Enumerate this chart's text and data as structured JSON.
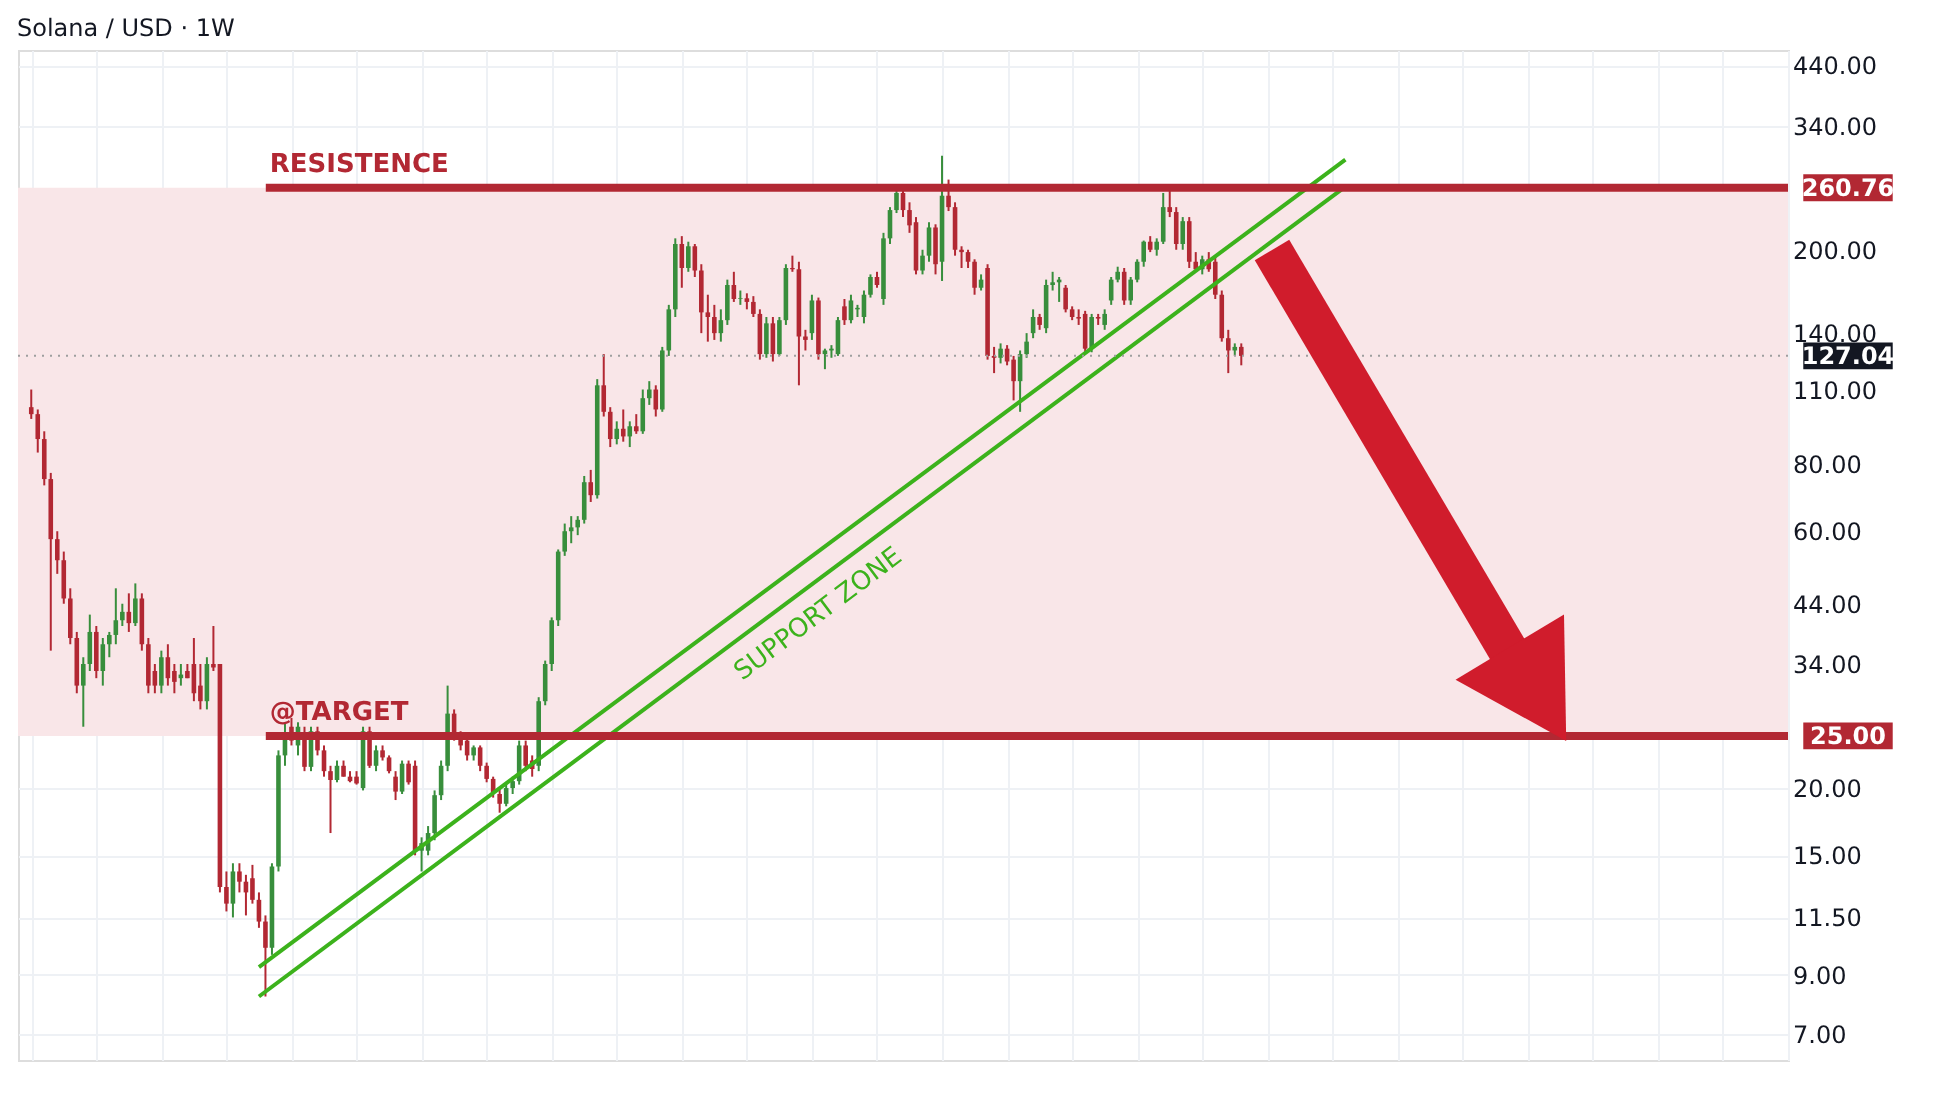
{
  "chart_data": {
    "type": "candlestick",
    "title": "Solana / USD · 1W",
    "categories": [
      null,
      null,
      null,
      null,
      null,
      null,
      null,
      null,
      null,
      null,
      null,
      null,
      null,
      null,
      null,
      null,
      null,
      null,
      null,
      null,
      null,
      null,
      null,
      null,
      null,
      null,
      null,
      null,
      null,
      null,
      null,
      null,
      null,
      null,
      null,
      null,
      null,
      null,
      null,
      null,
      null,
      null,
      null,
      null,
      null,
      null,
      null,
      null,
      null,
      null,
      null,
      null,
      null,
      null,
      null,
      null,
      null,
      null,
      null,
      null,
      null,
      null,
      null,
      null,
      null,
      null,
      null,
      null,
      null,
      null,
      null,
      null,
      null,
      null,
      null,
      null,
      null,
      null,
      null,
      null,
      null,
      null,
      null,
      null,
      null,
      null,
      null,
      null,
      null,
      null,
      null,
      null,
      null,
      null,
      null,
      null,
      null,
      null,
      null,
      null,
      null,
      null,
      null,
      null,
      null,
      null,
      null,
      null,
      null,
      null,
      null,
      null,
      null,
      null,
      null,
      null,
      null,
      null,
      null,
      null,
      null,
      null,
      null,
      null,
      null,
      null,
      null,
      null,
      null,
      null,
      null,
      null,
      null,
      null,
      null,
      null,
      null,
      null,
      null,
      null,
      null,
      null,
      null,
      null,
      null,
      null,
      null,
      null,
      null,
      null,
      null,
      null,
      null,
      null,
      null,
      null,
      null,
      null,
      null,
      null,
      null,
      null,
      null,
      null,
      null,
      null,
      null,
      null,
      null,
      null,
      null,
      null,
      null,
      null,
      null,
      null,
      null,
      null,
      null,
      null,
      null,
      null,
      null,
      null,
      null,
      null,
      null,
      null,
      null,
      null,
      null,
      null,
      null,
      null,
      null,
      null,
      null,
      null,
      null,
      null,
      null,
      null,
      null,
      null,
      null,
      null,
      null,
      null,
      null,
      null,
      null,
      null,
      null,
      null,
      null,
      null,
      null,
      null,
      null,
      null,
      null,
      null,
      null,
      null,
      null,
      null,
      null,
      null,
      null,
      null,
      null,
      null,
      null,
      null,
      null,
      null,
      null,
      null,
      null,
      null,
      null,
      null,
      null,
      null,
      null,
      null,
      null,
      null,
      null,
      null,
      null,
      null,
      null,
      null,
      null,
      null,
      null,
      null,
      null,
      null,
      null,
      null,
      null,
      null,
      null,
      null,
      null,
      null,
      null
    ],
    "ohlc": [
      [
        102,
        110,
        97,
        99
      ],
      [
        99,
        101,
        84,
        89
      ],
      [
        89,
        92,
        73,
        75
      ],
      [
        75,
        77,
        36,
        58
      ],
      [
        58,
        60,
        50,
        53
      ],
      [
        53,
        55,
        44,
        45
      ],
      [
        45,
        47,
        37,
        38
      ],
      [
        38,
        39,
        30,
        31
      ],
      [
        31,
        35,
        26,
        34
      ],
      [
        34,
        42,
        33,
        39
      ],
      [
        39,
        40,
        32,
        33
      ],
      [
        33,
        38,
        31,
        37
      ],
      [
        37,
        39,
        35,
        38.5
      ],
      [
        38.5,
        47,
        37,
        41
      ],
      [
        41,
        44,
        40,
        42.5
      ],
      [
        42.5,
        46,
        39,
        40.5
      ],
      [
        40.5,
        48,
        40,
        45
      ],
      [
        45,
        46,
        36,
        37
      ],
      [
        37,
        38,
        30,
        31
      ],
      [
        33,
        34,
        30,
        31
      ],
      [
        31,
        36,
        30,
        35
      ],
      [
        35,
        37,
        31,
        32
      ],
      [
        33,
        34,
        30,
        31.5
      ],
      [
        32,
        34,
        31,
        32.5
      ],
      [
        33,
        34,
        32,
        32
      ],
      [
        34,
        38,
        29,
        30
      ],
      [
        31,
        34,
        28,
        29
      ],
      [
        29,
        35,
        28,
        34
      ],
      [
        34,
        40,
        33,
        33.5
      ],
      [
        34,
        34,
        12.8,
        13.1
      ],
      [
        13.1,
        14,
        11.8,
        12.2
      ],
      [
        12.2,
        14.5,
        11.5,
        14
      ],
      [
        14,
        14.5,
        12.8,
        13.4
      ],
      [
        13.4,
        13.8,
        11.6,
        12.8
      ],
      [
        13.6,
        14.4,
        12.2,
        12.4
      ],
      [
        12.4,
        12.8,
        11,
        11.3
      ],
      [
        11.3,
        11.6,
        8.2,
        10.1
      ],
      [
        10.1,
        14.5,
        9.8,
        14.3
      ],
      [
        14.3,
        23.5,
        14,
        23
      ],
      [
        23,
        26.5,
        22,
        25
      ],
      [
        26,
        27,
        24,
        24.5
      ],
      [
        24,
        26.5,
        23,
        26
      ],
      [
        25,
        26,
        21.5,
        21.9
      ],
      [
        21.9,
        26,
        21.5,
        25.5
      ],
      [
        25.5,
        26,
        23,
        23.5
      ],
      [
        23.5,
        24,
        21,
        21.5
      ],
      [
        21.5,
        22,
        16.5,
        20.7
      ],
      [
        20.7,
        22.5,
        20.5,
        22
      ],
      [
        22,
        22.5,
        21,
        21
      ],
      [
        21,
        21.5,
        20.5,
        20.6
      ],
      [
        21,
        21.5,
        20.3,
        20.4
      ],
      [
        20,
        26,
        19.8,
        25.5
      ],
      [
        25.5,
        26,
        21.8,
        22
      ],
      [
        22,
        24,
        21.5,
        23.5
      ],
      [
        23.5,
        24,
        22.5,
        22.8
      ],
      [
        22.8,
        23,
        21.3,
        21.5
      ],
      [
        21,
        21.5,
        19,
        19.7
      ],
      [
        19.7,
        22.5,
        19.5,
        22.2
      ],
      [
        22.2,
        22.5,
        20.3,
        20.5
      ],
      [
        22,
        22.5,
        15,
        15.3
      ],
      [
        15.3,
        16.2,
        14,
        15.8
      ],
      [
        15.3,
        17,
        15,
        16.5
      ],
      [
        16.5,
        19.8,
        16,
        19.4
      ],
      [
        19.4,
        22.5,
        19,
        22
      ],
      [
        22,
        31,
        21.5,
        27.5
      ],
      [
        27.5,
        28,
        24.5,
        25
      ],
      [
        25,
        25.5,
        23.5,
        24
      ],
      [
        24.5,
        25,
        22.5,
        23
      ],
      [
        23,
        24,
        22.5,
        23.8
      ],
      [
        23.8,
        24,
        21.5,
        22
      ],
      [
        22,
        22.3,
        20.5,
        20.8
      ],
      [
        20.8,
        21,
        19.2,
        19.6
      ],
      [
        19.5,
        20,
        18,
        18.7
      ],
      [
        18.7,
        20.5,
        18.5,
        20
      ],
      [
        20,
        21,
        19.5,
        20.6
      ],
      [
        20.6,
        24.5,
        20.3,
        24
      ],
      [
        24,
        24.5,
        21.5,
        22
      ],
      [
        22.5,
        23,
        21,
        21.7
      ],
      [
        22,
        29.5,
        21.5,
        29
      ],
      [
        29,
        34.5,
        28.5,
        34
      ],
      [
        34,
        41.5,
        33,
        41
      ],
      [
        41,
        55.5,
        40,
        55
      ],
      [
        55,
        62,
        54,
        60
      ],
      [
        60,
        64,
        57,
        61
      ],
      [
        61,
        64,
        59,
        63
      ],
      [
        63,
        76,
        62,
        74
      ],
      [
        74,
        78,
        68,
        70
      ],
      [
        70,
        115,
        69,
        112
      ],
      [
        112,
        128,
        98,
        100
      ],
      [
        100,
        102,
        86,
        89
      ],
      [
        89,
        96,
        87,
        93
      ],
      [
        93,
        101,
        88,
        90
      ],
      [
        90,
        96,
        86,
        94
      ],
      [
        94,
        99,
        91,
        92
      ],
      [
        92,
        110,
        91,
        106
      ],
      [
        106,
        114,
        103,
        110
      ],
      [
        110,
        112,
        98,
        101
      ],
      [
        101,
        132,
        100,
        130
      ],
      [
        130,
        158,
        127,
        155
      ],
      [
        155,
        210,
        150,
        205
      ],
      [
        205,
        212,
        170,
        185
      ],
      [
        185,
        207,
        182,
        203
      ],
      [
        203,
        205,
        178,
        183
      ],
      [
        183,
        188,
        140,
        153
      ],
      [
        153,
        165,
        135,
        150
      ],
      [
        150,
        158,
        136,
        140
      ],
      [
        140,
        155,
        135,
        148
      ],
      [
        148,
        176,
        145,
        172
      ],
      [
        172,
        182,
        160,
        162
      ],
      [
        162,
        168,
        158,
        162.5
      ],
      [
        162.5,
        166,
        155,
        160
      ],
      [
        160,
        164,
        150,
        152
      ],
      [
        152,
        155,
        125,
        128
      ],
      [
        128,
        150,
        126,
        146
      ],
      [
        146,
        150,
        124,
        128
      ],
      [
        128,
        150,
        127,
        148
      ],
      [
        148,
        188,
        145,
        185
      ],
      [
        185,
        195,
        182,
        184
      ],
      [
        184,
        190,
        112,
        138
      ],
      [
        138,
        142,
        130,
        136
      ],
      [
        140,
        165,
        136,
        161
      ],
      [
        161,
        163,
        125,
        128
      ],
      [
        128,
        131,
        120,
        130
      ],
      [
        130,
        133,
        126,
        131
      ],
      [
        128,
        150,
        127,
        148
      ],
      [
        157,
        162,
        145,
        148
      ],
      [
        148,
        165,
        146,
        161
      ],
      [
        155,
        158,
        150,
        156
      ],
      [
        150,
        168,
        146,
        165
      ],
      [
        165,
        180,
        163,
        178
      ],
      [
        178,
        182,
        170,
        172
      ],
      [
        162,
        215,
        158,
        210
      ],
      [
        210,
        240,
        205,
        237
      ],
      [
        237,
        262,
        234,
        255
      ],
      [
        255,
        262,
        230,
        237
      ],
      [
        237,
        245,
        215,
        222
      ],
      [
        225,
        230,
        180,
        183
      ],
      [
        183,
        200,
        180,
        195
      ],
      [
        195,
        225,
        190,
        220
      ],
      [
        220,
        223,
        180,
        188
      ],
      [
        190,
        299,
        175,
        252
      ],
      [
        252,
        270,
        236,
        240
      ],
      [
        240,
        245,
        195,
        200
      ],
      [
        200,
        203,
        185,
        198
      ],
      [
        198,
        200,
        185,
        190
      ],
      [
        190,
        192,
        165,
        170
      ],
      [
        170,
        180,
        168,
        176
      ],
      [
        185,
        188,
        125,
        127
      ],
      [
        127,
        132,
        118,
        126
      ],
      [
        126,
        134,
        123,
        131
      ],
      [
        131,
        133,
        122,
        124
      ],
      [
        125,
        127,
        105,
        114
      ],
      [
        114,
        130,
        100,
        128
      ],
      [
        128,
        140,
        126,
        135
      ],
      [
        140,
        155,
        137,
        150
      ],
      [
        150,
        152,
        142,
        145
      ],
      [
        143,
        176,
        140,
        172
      ],
      [
        172,
        182,
        168,
        174
      ],
      [
        174,
        178,
        160,
        176
      ],
      [
        170,
        172,
        153,
        155
      ],
      [
        155,
        157,
        148,
        150
      ],
      [
        150,
        155,
        145,
        149
      ],
      [
        152,
        154,
        128,
        131
      ],
      [
        131,
        152,
        129,
        150
      ],
      [
        150,
        152,
        145,
        149
      ],
      [
        145,
        155,
        142,
        152
      ],
      [
        161,
        178,
        158,
        176
      ],
      [
        176,
        186,
        174,
        182
      ],
      [
        182,
        185,
        158,
        161
      ],
      [
        161,
        178,
        158,
        176
      ],
      [
        176,
        192,
        174,
        190
      ],
      [
        190,
        208,
        186,
        207
      ],
      [
        207,
        212,
        198,
        200
      ],
      [
        200,
        210,
        195,
        207
      ],
      [
        207,
        255,
        205,
        240
      ],
      [
        240,
        262,
        230,
        235
      ],
      [
        235,
        240,
        200,
        205
      ],
      [
        205,
        230,
        200,
        226
      ],
      [
        226,
        230,
        185,
        190
      ],
      [
        190,
        198,
        182,
        184
      ],
      [
        184,
        195,
        180,
        192
      ],
      [
        192,
        198,
        182,
        184
      ],
      [
        190,
        195,
        162,
        165
      ],
      [
        165,
        168,
        135,
        137
      ],
      [
        137,
        142,
        118,
        130
      ],
      [
        130,
        134,
        127,
        132
      ],
      [
        132,
        134,
        122,
        127
      ],
      null,
      null,
      null,
      null,
      null,
      null,
      null,
      null,
      null,
      null,
      null,
      null,
      null,
      null,
      null,
      null,
      null,
      null,
      null,
      null,
      null,
      null,
      null,
      null,
      null,
      null,
      null,
      null,
      null,
      null,
      null,
      null,
      null,
      null,
      null,
      null,
      null,
      null,
      null,
      null,
      null,
      null,
      null,
      null,
      null,
      null,
      null,
      null,
      null,
      null,
      null,
      null,
      null,
      null,
      null,
      null,
      null,
      null,
      null,
      null,
      null,
      null,
      null,
      null,
      null,
      null,
      null,
      null,
      null,
      null,
      null,
      null,
      null,
      null,
      null,
      null,
      null,
      null,
      null,
      null,
      null,
      null
    ],
    "colors": [
      "#b22833",
      "#b22833",
      "#b22833",
      "#b22833",
      "#b22833",
      "#b22833",
      "#b22833",
      "#b22833",
      "#388e3c",
      "#388e3c",
      "#b22833",
      "#388e3c",
      "#388e3c",
      "#388e3c",
      "#388e3c",
      "#b22833",
      "#388e3c",
      "#b22833",
      "#b22833",
      "#b22833",
      "#388e3c",
      "#b22833",
      "#b22833",
      "#388e3c",
      "#b22833",
      "#b22833",
      "#b22833",
      "#388e3c",
      "#b22833",
      "#b22833",
      "#b22833",
      "#388e3c",
      "#b22833",
      "#b22833",
      "#b22833",
      "#b22833",
      "#b22833",
      "#388e3c",
      "#388e3c",
      "#388e3c",
      "#b22833",
      "#388e3c",
      "#b22833",
      "#388e3c",
      "#b22833",
      "#b22833",
      "#b22833",
      "#388e3c",
      "#b22833",
      "#b22833",
      "#b22833",
      "#388e3c",
      "#b22833",
      "#388e3c",
      "#b22833",
      "#b22833",
      "#b22833",
      "#388e3c",
      "#b22833",
      "#b22833",
      "#388e3c",
      "#388e3c",
      "#388e3c",
      "#388e3c",
      "#388e3c",
      "#b22833",
      "#b22833",
      "#b22833",
      "#388e3c",
      "#b22833",
      "#b22833",
      "#b22833",
      "#b22833",
      "#388e3c",
      "#388e3c",
      "#388e3c",
      "#b22833",
      "#b22833",
      "#388e3c",
      "#388e3c",
      "#388e3c",
      "#388e3c",
      "#388e3c",
      "#388e3c",
      "#388e3c",
      "#388e3c",
      "#b22833",
      "#388e3c",
      "#b22833",
      "#b22833",
      "#388e3c",
      "#b22833",
      "#388e3c",
      "#b22833",
      "#388e3c",
      "#388e3c",
      "#b22833",
      "#388e3c",
      "#388e3c",
      "#388e3c",
      "#b22833",
      "#388e3c",
      "#b22833",
      "#b22833",
      "#b22833",
      "#b22833",
      "#388e3c",
      "#388e3c",
      "#b22833",
      "#388e3c",
      "#b22833",
      "#b22833",
      "#b22833",
      "#388e3c",
      "#b22833",
      "#388e3c",
      "#388e3c",
      "#b22833",
      "#b22833",
      "#b22833",
      "#388e3c",
      "#b22833",
      "#388e3c",
      "#388e3c",
      "#388e3c",
      "#b22833",
      "#388e3c",
      "#388e3c",
      "#388e3c",
      "#388e3c",
      "#b22833",
      "#388e3c",
      "#388e3c",
      "#388e3c",
      "#b22833",
      "#b22833",
      "#b22833",
      "#388e3c",
      "#388e3c",
      "#b22833",
      "#388e3c",
      "#b22833",
      "#b22833",
      "#b22833",
      "#b22833",
      "#b22833",
      "#388e3c",
      "#b22833",
      "#b22833",
      "#388e3c",
      "#b22833",
      "#b22833",
      "#388e3c",
      "#388e3c",
      "#388e3c",
      "#b22833",
      "#388e3c",
      "#388e3c",
      "#388e3c",
      "#b22833",
      "#b22833",
      "#b22833",
      "#b22833",
      "#388e3c",
      "#b22833",
      "#388e3c",
      "#388e3c",
      "#388e3c",
      "#b22833",
      "#388e3c",
      "#388e3c",
      "#388e3c",
      "#b22833",
      "#388e3c",
      "#388e3c",
      "#b22833",
      "#b22833",
      "#388e3c",
      "#b22833",
      "#b22833",
      "#388e3c",
      "#b22833",
      "#b22833",
      "#b22833",
      "#b22833",
      "#388e3c",
      "#b22833",
      null,
      null,
      null,
      null,
      null,
      null,
      null,
      null,
      null,
      null,
      null,
      null,
      null,
      null,
      null,
      null,
      null,
      null,
      null,
      null,
      null,
      null,
      null,
      null,
      null,
      null,
      null,
      null,
      null,
      null,
      null,
      null,
      null,
      null,
      null,
      null,
      null,
      null,
      null,
      null,
      null,
      null,
      null,
      null,
      null,
      null,
      null,
      null,
      null,
      null,
      null,
      null,
      null,
      null,
      null,
      null,
      null,
      null,
      null,
      null,
      null,
      null,
      null,
      null,
      null,
      null,
      null,
      null,
      null,
      null,
      null,
      null,
      null,
      null,
      null,
      null,
      null,
      null,
      null,
      null,
      null,
      null
    ],
    "series": [
      {
        "type": "line",
        "color": "#3cb21c",
        "values": [
          null,
          null,
          null,
          null,
          null,
          null,
          null,
          null,
          null,
          null,
          null,
          null,
          null,
          null,
          null,
          null,
          null,
          null,
          null,
          null,
          null,
          null,
          null,
          null,
          null,
          null,
          null,
          null,
          null,
          null,
          null,
          null,
          null,
          null,
          null,
          9.3,
          null,
          null,
          null,
          null,
          null,
          null,
          null,
          null,
          null,
          null,
          null,
          null,
          null,
          null,
          null,
          null,
          null,
          null,
          null,
          null,
          null,
          null,
          null,
          null,
          null,
          null,
          null,
          null,
          null,
          null,
          null,
          null,
          null,
          null,
          null,
          null,
          null,
          null,
          null,
          null,
          null,
          null,
          null,
          null,
          null,
          null,
          null,
          null,
          null,
          null,
          null,
          null,
          null,
          null,
          null,
          null,
          null,
          null,
          null,
          null,
          null,
          null,
          null,
          null,
          null,
          null,
          null,
          null,
          null,
          null,
          null,
          null,
          null,
          null,
          null,
          null,
          null,
          null,
          null,
          null,
          null,
          null,
          null,
          null,
          null,
          null,
          null,
          null,
          null,
          null,
          null,
          null,
          null,
          null,
          null,
          null,
          null,
          null,
          null,
          null,
          null,
          null,
          null,
          null,
          null,
          null,
          null,
          null,
          null,
          null,
          null,
          null,
          null,
          null,
          null,
          null,
          null,
          null,
          null,
          null,
          null,
          null,
          null,
          null,
          null,
          null,
          null,
          null,
          null,
          null,
          null,
          null,
          null,
          null,
          null,
          null,
          null,
          null,
          null,
          null,
          null,
          null,
          null,
          null,
          null,
          null,
          null,
          null,
          null,
          null,
          null,
          null,
          null,
          null,
          null,
          null,
          null,
          null,
          null,
          null,
          null,
          null,
          null,
          null,
          null,
          null,
          294,
          null,
          null,
          null,
          null,
          null,
          null,
          null,
          null,
          null,
          null,
          null,
          null,
          null,
          null,
          null,
          null,
          null,
          null,
          null,
          null,
          null,
          null,
          null,
          null,
          null,
          null,
          null,
          null,
          null,
          null,
          null,
          null,
          null,
          null,
          null,
          null,
          null,
          null,
          null,
          null,
          null,
          null,
          null,
          null,
          null,
          null,
          null,
          null,
          null,
          null,
          null,
          null,
          null,
          null,
          null,
          null,
          null,
          null,
          null,
          null,
          null,
          null,
          null,
          null,
          null,
          null
        ]
      },
      {
        "type": "line",
        "color": "#3cb21c",
        "values": [
          null,
          null,
          null,
          null,
          null,
          null,
          null,
          null,
          null,
          null,
          null,
          null,
          null,
          null,
          null,
          null,
          null,
          null,
          null,
          null,
          null,
          null,
          null,
          null,
          null,
          null,
          null,
          null,
          null,
          null,
          null,
          null,
          null,
          null,
          null,
          8.2,
          null,
          null,
          null,
          null,
          null,
          null,
          null,
          null,
          null,
          null,
          null,
          null,
          null,
          null,
          null,
          null,
          null,
          null,
          null,
          null,
          null,
          null,
          null,
          null,
          null,
          null,
          null,
          null,
          null,
          null,
          null,
          null,
          null,
          null,
          null,
          null,
          null,
          null,
          null,
          null,
          null,
          null,
          null,
          null,
          null,
          null,
          null,
          null,
          null,
          null,
          null,
          null,
          null,
          null,
          null,
          null,
          null,
          null,
          null,
          null,
          null,
          null,
          null,
          null,
          null,
          null,
          null,
          null,
          null,
          null,
          null,
          null,
          null,
          null,
          null,
          null,
          null,
          null,
          null,
          null,
          null,
          null,
          null,
          null,
          null,
          null,
          null,
          null,
          null,
          null,
          null,
          null,
          null,
          null,
          null,
          null,
          null,
          null,
          null,
          null,
          null,
          null,
          null,
          null,
          null,
          null,
          null,
          null,
          null,
          null,
          null,
          null,
          null,
          null,
          null,
          null,
          null,
          null,
          null,
          null,
          null,
          null,
          null,
          null,
          null,
          null,
          null,
          null,
          null,
          null,
          null,
          null,
          null,
          null,
          null,
          null,
          null,
          null,
          null,
          null,
          null,
          null,
          null,
          null,
          null,
          null,
          null,
          null,
          null,
          null,
          null,
          null,
          null,
          null,
          null,
          null,
          null,
          null,
          null,
          null,
          null,
          null,
          null,
          null,
          null,
          null,
          262,
          null,
          null,
          null,
          null,
          null,
          null,
          null,
          null,
          null,
          null,
          null,
          null,
          null,
          null,
          null,
          null,
          null,
          null,
          null,
          null,
          null,
          null,
          null,
          null,
          null,
          null,
          null,
          null,
          null,
          null,
          null,
          null,
          null,
          null,
          null,
          null,
          null,
          null,
          null,
          null,
          null,
          null,
          null,
          null,
          null,
          null,
          null,
          null,
          null,
          null,
          null,
          null,
          null,
          null,
          null,
          null,
          null,
          null,
          null,
          null,
          null,
          null,
          null,
          null,
          null,
          null
        ]
      }
    ],
    "log": "y",
    "ylim": [
      6.25,
      470
    ],
    "yticks": [
      {
        "value": 7,
        "label": "7.00"
      },
      {
        "value": 9,
        "label": "9.00"
      },
      {
        "value": 11.5,
        "label": "11.50"
      },
      {
        "value": 15,
        "label": "15.00"
      },
      {
        "value": 20,
        "label": "20.00"
      },
      {
        "value": 34,
        "label": "34.00"
      },
      {
        "value": 44,
        "label": "44.00"
      },
      {
        "value": 60,
        "label": "60.00"
      },
      {
        "value": 80,
        "label": "80.00"
      },
      {
        "value": 110,
        "label": "110.00"
      },
      {
        "value": 140,
        "label": "140.00"
      },
      {
        "value": 200,
        "label": "200.00"
      },
      {
        "value": 340,
        "label": "340.00"
      },
      {
        "value": 440,
        "label": "440.00"
      }
    ],
    "ref_lines": [
      {
        "axis": "y",
        "value": 260.76,
        "label": "260.76",
        "color": "#b22833",
        "line_style": "solid"
      },
      {
        "axis": "y",
        "value": 25,
        "label": "25.00",
        "color": "#b22833",
        "line_style": "solid"
      },
      {
        "axis": "y",
        "value": 127.04,
        "label": "127.04",
        "color": "#9e9e9e",
        "line_style": "dotted"
      }
    ],
    "bands": [
      {
        "axis": "y",
        "from": 25,
        "to": 260.76,
        "label": null,
        "color": "#f9e6e8"
      }
    ],
    "annotations": [
      {
        "text": "RESISTENCE",
        "y": 260.76
      },
      {
        "text": "@TARGET",
        "y": 25
      },
      "SUPPORT ZONE"
    ],
    "grid": true,
    "tick_labels": "y"
  }
}
